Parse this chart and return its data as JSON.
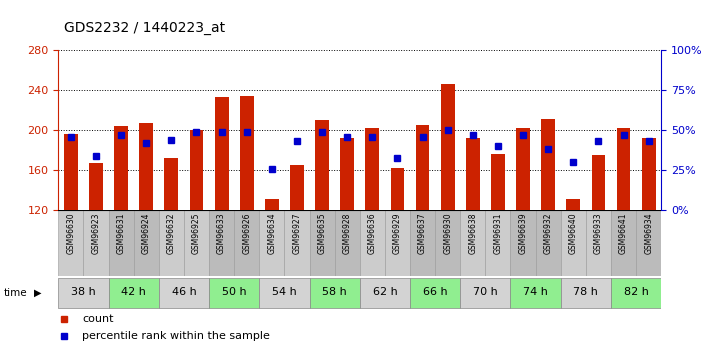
{
  "title": "GDS2232 / 1440223_at",
  "samples": [
    "GSM96630",
    "GSM96923",
    "GSM96631",
    "GSM96924",
    "GSM96632",
    "GSM96925",
    "GSM96633",
    "GSM96926",
    "GSM96634",
    "GSM96927",
    "GSM96635",
    "GSM96928",
    "GSM96636",
    "GSM96929",
    "GSM96637",
    "GSM96930",
    "GSM96638",
    "GSM96931",
    "GSM96639",
    "GSM96932",
    "GSM96640",
    "GSM96933",
    "GSM96641",
    "GSM96934"
  ],
  "count_values": [
    196,
    167,
    204,
    207,
    172,
    200,
    233,
    234,
    131,
    165,
    210,
    192,
    202,
    162,
    205,
    246,
    192,
    176,
    202,
    211,
    131,
    175,
    202,
    192
  ],
  "percentile_values": [
    46,
    34,
    47,
    42,
    44,
    49,
    49,
    49,
    26,
    43,
    49,
    46,
    46,
    33,
    46,
    50,
    47,
    40,
    47,
    38,
    30,
    43,
    47,
    43
  ],
  "time_groups": [
    {
      "label": "38 h",
      "samples": [
        0,
        1
      ],
      "color": "#cccccc",
      "time_color": "#d3d3d3"
    },
    {
      "label": "42 h",
      "samples": [
        2,
        3
      ],
      "color": "#cccccc",
      "time_color": "#90ee90"
    },
    {
      "label": "46 h",
      "samples": [
        4,
        5
      ],
      "color": "#cccccc",
      "time_color": "#d3d3d3"
    },
    {
      "label": "50 h",
      "samples": [
        6,
        7
      ],
      "color": "#cccccc",
      "time_color": "#90ee90"
    },
    {
      "label": "54 h",
      "samples": [
        8,
        9
      ],
      "color": "#cccccc",
      "time_color": "#d3d3d3"
    },
    {
      "label": "58 h",
      "samples": [
        10,
        11
      ],
      "color": "#cccccc",
      "time_color": "#90ee90"
    },
    {
      "label": "62 h",
      "samples": [
        12,
        13
      ],
      "color": "#cccccc",
      "time_color": "#d3d3d3"
    },
    {
      "label": "66 h",
      "samples": [
        14,
        15
      ],
      "color": "#cccccc",
      "time_color": "#90ee90"
    },
    {
      "label": "70 h",
      "samples": [
        16,
        17
      ],
      "color": "#cccccc",
      "time_color": "#d3d3d3"
    },
    {
      "label": "74 h",
      "samples": [
        18,
        19
      ],
      "color": "#cccccc",
      "time_color": "#90ee90"
    },
    {
      "label": "78 h",
      "samples": [
        20,
        21
      ],
      "color": "#cccccc",
      "time_color": "#d3d3d3"
    },
    {
      "label": "82 h",
      "samples": [
        22,
        23
      ],
      "color": "#cccccc",
      "time_color": "#90ee90"
    }
  ],
  "y_min": 120,
  "y_max": 280,
  "y_ticks": [
    120,
    160,
    200,
    240,
    280
  ],
  "y2_ticks": [
    0,
    25,
    50,
    75,
    100
  ],
  "bar_color": "#cc2200",
  "percentile_color": "#0000cc",
  "legend_count_label": "count",
  "legend_percentile_label": "percentile rank within the sample",
  "xlabel_bg_odd": "#cccccc",
  "xlabel_bg_even": "#bbbbbb"
}
